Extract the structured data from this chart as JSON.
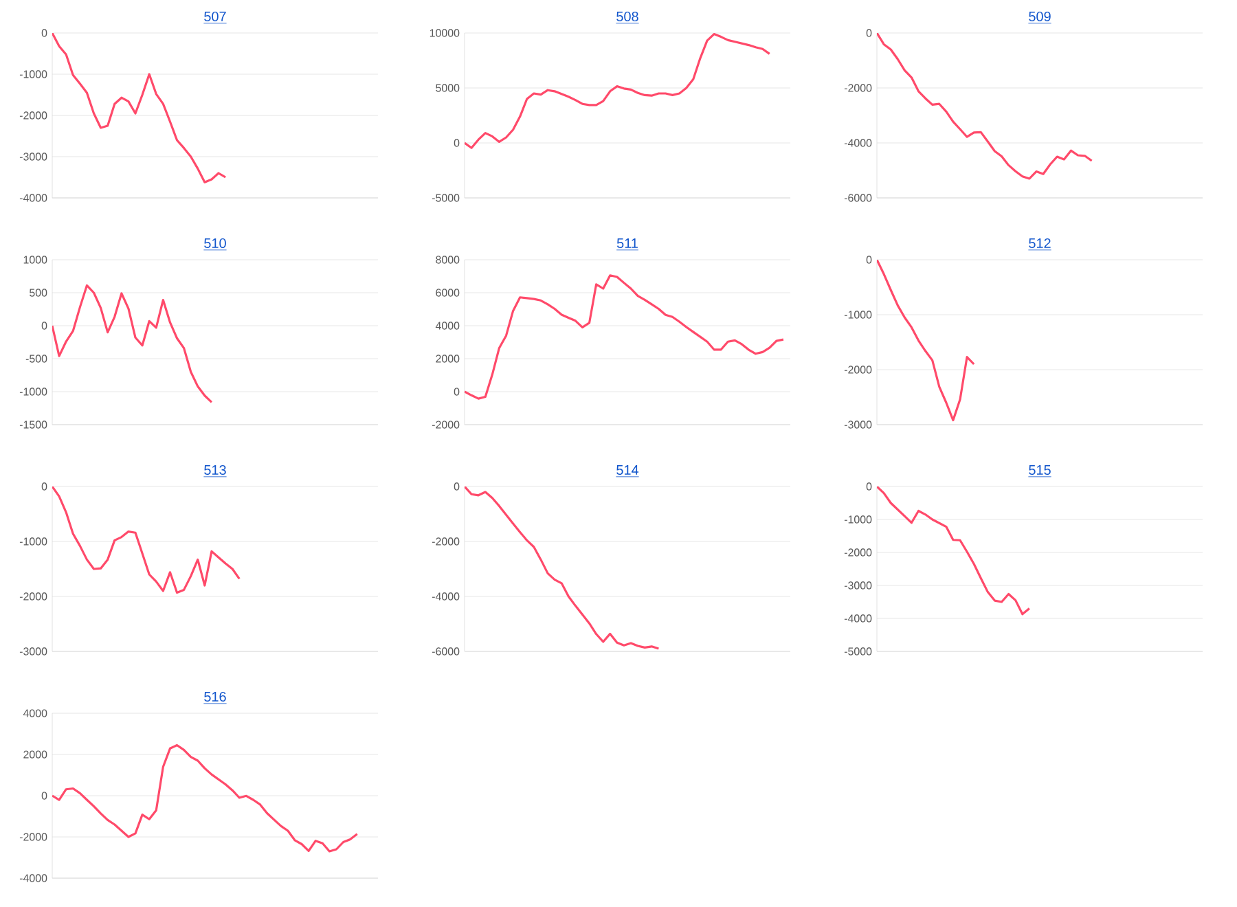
{
  "chart_data": [
    {
      "type": "line",
      "title": "507",
      "grid": "y",
      "tick_labels": "y",
      "ylim": [
        -4000,
        0
      ],
      "yticks": [
        -4000,
        -3000,
        -2000,
        -1000,
        0
      ],
      "categories": [
        null,
        null,
        null,
        null,
        null,
        null,
        null,
        null,
        null,
        null,
        null,
        null,
        null,
        null,
        null,
        null,
        null,
        null,
        null,
        null,
        null,
        null,
        null,
        null,
        null,
        null,
        null,
        null,
        null,
        null,
        null,
        null,
        null,
        null,
        null,
        null,
        null,
        null,
        null,
        null,
        null,
        null,
        null,
        null,
        null,
        null,
        null,
        null
      ],
      "series": [
        {
          "color": "#ff4a6a",
          "values": [
            0,
            -320,
            -520,
            -1020,
            -1230,
            -1450,
            -1950,
            -2300,
            -2250,
            -1720,
            -1570,
            -1660,
            -1950,
            -1500,
            -1000,
            -1480,
            -1720,
            -2150,
            -2600,
            -2790,
            -3000,
            -3290,
            -3620,
            -3550,
            -3400,
            -3500,
            null,
            null,
            null,
            null,
            null,
            null,
            null,
            null,
            null,
            null,
            null,
            null,
            null,
            null,
            null,
            null,
            null,
            null,
            null,
            null,
            null,
            null
          ]
        }
      ]
    },
    {
      "type": "line",
      "title": "508",
      "grid": "y",
      "tick_labels": "y",
      "ylim": [
        -5000,
        10000
      ],
      "yticks": [
        -5000,
        0,
        5000,
        10000
      ],
      "categories": [
        null,
        null,
        null,
        null,
        null,
        null,
        null,
        null,
        null,
        null,
        null,
        null,
        null,
        null,
        null,
        null,
        null,
        null,
        null,
        null,
        null,
        null,
        null,
        null,
        null,
        null,
        null,
        null,
        null,
        null,
        null,
        null,
        null,
        null,
        null,
        null,
        null,
        null,
        null,
        null,
        null,
        null,
        null,
        null,
        null,
        null,
        null,
        null
      ],
      "series": [
        {
          "color": "#ff4a6a",
          "values": [
            0,
            -450,
            300,
            900,
            600,
            100,
            500,
            1200,
            2400,
            4000,
            4500,
            4400,
            4800,
            4700,
            4450,
            4200,
            3900,
            3550,
            3450,
            3450,
            3800,
            4700,
            5150,
            4950,
            4850,
            4550,
            4350,
            4300,
            4500,
            4500,
            4350,
            4500,
            5000,
            5800,
            7700,
            9300,
            9900,
            9650,
            9350,
            9200,
            9050,
            8900,
            8700,
            8550,
            8100,
            null,
            null,
            null
          ]
        }
      ]
    },
    {
      "type": "line",
      "title": "509",
      "grid": "y",
      "tick_labels": "y",
      "ylim": [
        -6000,
        0
      ],
      "yticks": [
        -6000,
        -4000,
        -2000,
        0
      ],
      "categories": [
        null,
        null,
        null,
        null,
        null,
        null,
        null,
        null,
        null,
        null,
        null,
        null,
        null,
        null,
        null,
        null,
        null,
        null,
        null,
        null,
        null,
        null,
        null,
        null,
        null,
        null,
        null,
        null,
        null,
        null,
        null,
        null,
        null,
        null,
        null,
        null,
        null,
        null,
        null,
        null,
        null,
        null,
        null,
        null,
        null,
        null,
        null,
        null
      ],
      "series": [
        {
          "color": "#ff4a6a",
          "values": [
            0,
            -410,
            -600,
            -950,
            -1360,
            -1620,
            -2120,
            -2380,
            -2610,
            -2580,
            -2860,
            -3230,
            -3500,
            -3780,
            -3620,
            -3610,
            -3950,
            -4300,
            -4490,
            -4810,
            -5030,
            -5220,
            -5300,
            -5040,
            -5130,
            -4780,
            -4500,
            -4600,
            -4280,
            -4450,
            -4470,
            -4650,
            null,
            null,
            null,
            null,
            null,
            null,
            null,
            null,
            null,
            null,
            null,
            null,
            null,
            null,
            null,
            null
          ]
        }
      ]
    },
    {
      "type": "line",
      "title": "510",
      "grid": "y",
      "tick_labels": "y",
      "ylim": [
        -1500,
        1000
      ],
      "yticks": [
        -1500,
        -1000,
        -500,
        0,
        500,
        1000
      ],
      "categories": [
        null,
        null,
        null,
        null,
        null,
        null,
        null,
        null,
        null,
        null,
        null,
        null,
        null,
        null,
        null,
        null,
        null,
        null,
        null,
        null,
        null,
        null,
        null,
        null,
        null,
        null,
        null,
        null,
        null,
        null,
        null,
        null,
        null,
        null,
        null,
        null,
        null,
        null,
        null,
        null,
        null,
        null,
        null,
        null,
        null,
        null,
        null,
        null
      ],
      "series": [
        {
          "color": "#ff4a6a",
          "values": [
            0,
            -460,
            -240,
            -80,
            280,
            610,
            500,
            270,
            -100,
            135,
            490,
            260,
            -180,
            -300,
            70,
            -30,
            390,
            50,
            -190,
            -340,
            -700,
            -920,
            -1060,
            -1160,
            null,
            null,
            null,
            null,
            null,
            null,
            null,
            null,
            null,
            null,
            null,
            null,
            null,
            null,
            null,
            null,
            null,
            null,
            null,
            null,
            null,
            null,
            null,
            null
          ]
        }
      ]
    },
    {
      "type": "line",
      "title": "511",
      "grid": "y",
      "tick_labels": "y",
      "ylim": [
        -2000,
        8000
      ],
      "yticks": [
        -2000,
        0,
        2000,
        4000,
        6000,
        8000
      ],
      "categories": [
        null,
        null,
        null,
        null,
        null,
        null,
        null,
        null,
        null,
        null,
        null,
        null,
        null,
        null,
        null,
        null,
        null,
        null,
        null,
        null,
        null,
        null,
        null,
        null,
        null,
        null,
        null,
        null,
        null,
        null,
        null,
        null,
        null,
        null,
        null,
        null,
        null,
        null,
        null,
        null,
        null,
        null,
        null,
        null,
        null,
        null,
        null,
        null
      ],
      "series": [
        {
          "color": "#ff4a6a",
          "values": [
            0,
            -220,
            -420,
            -310,
            1040,
            2650,
            3400,
            4900,
            5720,
            5670,
            5620,
            5530,
            5300,
            5020,
            4670,
            4480,
            4300,
            3900,
            4170,
            6510,
            6250,
            7050,
            6960,
            6600,
            6250,
            5810,
            5570,
            5300,
            5020,
            4660,
            4530,
            4240,
            3920,
            3620,
            3330,
            3030,
            2550,
            2550,
            3030,
            3110,
            2880,
            2540,
            2300,
            2400,
            2660,
            3080,
            3160,
            null
          ]
        }
      ]
    },
    {
      "type": "line",
      "title": "512",
      "grid": "y",
      "tick_labels": "y",
      "ylim": [
        -3000,
        0
      ],
      "yticks": [
        -3000,
        -2000,
        -1000,
        0
      ],
      "categories": [
        null,
        null,
        null,
        null,
        null,
        null,
        null,
        null,
        null,
        null,
        null,
        null,
        null,
        null,
        null,
        null,
        null,
        null,
        null,
        null,
        null,
        null,
        null,
        null,
        null,
        null,
        null,
        null,
        null,
        null,
        null,
        null,
        null,
        null,
        null,
        null,
        null,
        null,
        null,
        null,
        null,
        null,
        null,
        null,
        null,
        null,
        null,
        null
      ],
      "series": [
        {
          "color": "#ff4a6a",
          "values": [
            0,
            -260,
            -550,
            -830,
            -1050,
            -1230,
            -1470,
            -1660,
            -1830,
            -2310,
            -2600,
            -2920,
            -2540,
            -1770,
            -1900,
            null,
            null,
            null,
            null,
            null,
            null,
            null,
            null,
            null,
            null,
            null,
            null,
            null,
            null,
            null,
            null,
            null,
            null,
            null,
            null,
            null,
            null,
            null,
            null,
            null,
            null,
            null,
            null,
            null,
            null,
            null,
            null,
            null
          ]
        }
      ]
    },
    {
      "type": "line",
      "title": "513",
      "grid": "y",
      "tick_labels": "y",
      "ylim": [
        -3000,
        0
      ],
      "yticks": [
        -3000,
        -2000,
        -1000,
        0
      ],
      "categories": [
        null,
        null,
        null,
        null,
        null,
        null,
        null,
        null,
        null,
        null,
        null,
        null,
        null,
        null,
        null,
        null,
        null,
        null,
        null,
        null,
        null,
        null,
        null,
        null,
        null,
        null,
        null,
        null,
        null,
        null,
        null,
        null,
        null,
        null,
        null,
        null,
        null,
        null,
        null,
        null,
        null,
        null,
        null,
        null,
        null,
        null,
        null,
        null
      ],
      "series": [
        {
          "color": "#ff4a6a",
          "values": [
            0,
            -180,
            -470,
            -860,
            -1080,
            -1330,
            -1500,
            -1490,
            -1330,
            -980,
            -920,
            -820,
            -840,
            -1220,
            -1600,
            -1730,
            -1900,
            -1560,
            -1930,
            -1880,
            -1630,
            -1330,
            -1800,
            -1180,
            -1290,
            -1400,
            -1500,
            -1680,
            null,
            null,
            null,
            null,
            null,
            null,
            null,
            null,
            null,
            null,
            null,
            null,
            null,
            null,
            null,
            null,
            null,
            null,
            null,
            null
          ]
        }
      ]
    },
    {
      "type": "line",
      "title": "514",
      "grid": "y",
      "tick_labels": "y",
      "ylim": [
        -6000,
        0
      ],
      "yticks": [
        -6000,
        -4000,
        -2000,
        0
      ],
      "categories": [
        null,
        null,
        null,
        null,
        null,
        null,
        null,
        null,
        null,
        null,
        null,
        null,
        null,
        null,
        null,
        null,
        null,
        null,
        null,
        null,
        null,
        null,
        null,
        null,
        null,
        null,
        null,
        null,
        null,
        null,
        null,
        null,
        null,
        null,
        null,
        null,
        null,
        null,
        null,
        null,
        null,
        null,
        null,
        null,
        null,
        null,
        null,
        null
      ],
      "series": [
        {
          "color": "#ff4a6a",
          "values": [
            0,
            -280,
            -320,
            -200,
            -420,
            -710,
            -1030,
            -1350,
            -1660,
            -1960,
            -2200,
            -2660,
            -3160,
            -3390,
            -3520,
            -4000,
            -4340,
            -4660,
            -4980,
            -5370,
            -5650,
            -5360,
            -5680,
            -5780,
            -5700,
            -5800,
            -5860,
            -5820,
            -5900,
            null,
            null,
            null,
            null,
            null,
            null,
            null,
            null,
            null,
            null,
            null,
            null,
            null,
            null,
            null,
            null,
            null,
            null,
            null
          ]
        }
      ]
    },
    {
      "type": "line",
      "title": "515",
      "grid": "y",
      "tick_labels": "y",
      "ylim": [
        -5000,
        0
      ],
      "yticks": [
        -5000,
        -4000,
        -3000,
        -2000,
        -1000,
        0
      ],
      "categories": [
        null,
        null,
        null,
        null,
        null,
        null,
        null,
        null,
        null,
        null,
        null,
        null,
        null,
        null,
        null,
        null,
        null,
        null,
        null,
        null,
        null,
        null,
        null,
        null,
        null,
        null,
        null,
        null,
        null,
        null,
        null,
        null,
        null,
        null,
        null,
        null,
        null,
        null,
        null,
        null,
        null,
        null,
        null,
        null,
        null,
        null,
        null,
        null
      ],
      "series": [
        {
          "color": "#ff4a6a",
          "values": [
            0,
            -200,
            -500,
            -700,
            -900,
            -1100,
            -740,
            -850,
            -1000,
            -1110,
            -1220,
            -1620,
            -1630,
            -1980,
            -2350,
            -2780,
            -3200,
            -3460,
            -3500,
            -3260,
            -3450,
            -3870,
            -3700,
            null,
            null,
            null,
            null,
            null,
            null,
            null,
            null,
            null,
            null,
            null,
            null,
            null,
            null,
            null,
            null,
            null,
            null,
            null,
            null,
            null,
            null,
            null,
            null,
            null
          ]
        }
      ]
    },
    {
      "type": "line",
      "title": "516",
      "grid": "y",
      "tick_labels": "y",
      "ylim": [
        -4000,
        4000
      ],
      "yticks": [
        -4000,
        -2000,
        0,
        2000,
        4000
      ],
      "categories": [
        null,
        null,
        null,
        null,
        null,
        null,
        null,
        null,
        null,
        null,
        null,
        null,
        null,
        null,
        null,
        null,
        null,
        null,
        null,
        null,
        null,
        null,
        null,
        null,
        null,
        null,
        null,
        null,
        null,
        null,
        null,
        null,
        null,
        null,
        null,
        null,
        null,
        null,
        null,
        null,
        null,
        null,
        null,
        null,
        null,
        null,
        null,
        null
      ],
      "series": [
        {
          "color": "#ff4a6a",
          "values": [
            0,
            -200,
            310,
            350,
            120,
            -200,
            -510,
            -860,
            -1180,
            -1400,
            -1700,
            -2000,
            -1830,
            -920,
            -1140,
            -710,
            1400,
            2290,
            2450,
            2220,
            1880,
            1700,
            1330,
            1030,
            790,
            550,
            260,
            -100,
            -10,
            -200,
            -430,
            -850,
            -1160,
            -1470,
            -1700,
            -2160,
            -2350,
            -2680,
            -2190,
            -2310,
            -2700,
            -2600,
            -2250,
            -2120,
            -1860,
            null,
            null,
            null
          ]
        }
      ]
    }
  ]
}
